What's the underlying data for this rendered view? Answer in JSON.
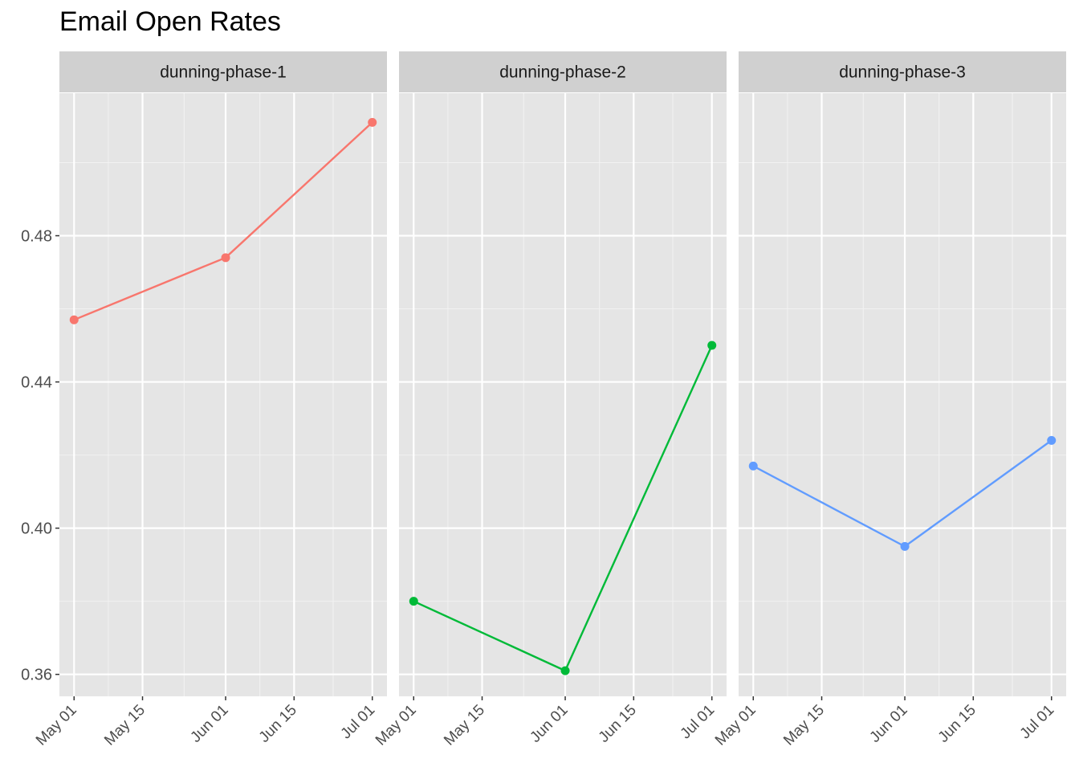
{
  "chart_data": {
    "type": "line",
    "title": "Email Open Rates",
    "xlabel": "",
    "ylabel": "",
    "x": [
      "2023-05-01",
      "2023-06-01",
      "2023-07-01"
    ],
    "xlim": [
      "2023-04-28",
      "2023-07-04"
    ],
    "ylim": [
      0.354,
      0.519
    ],
    "x_ticks": [
      {
        "label": "May 01",
        "date": "2023-05-01"
      },
      {
        "label": "May 15",
        "date": "2023-05-15"
      },
      {
        "label": "Jun 01",
        "date": "2023-06-01"
      },
      {
        "label": "Jun 15",
        "date": "2023-06-15"
      },
      {
        "label": "Jul 01",
        "date": "2023-07-01"
      }
    ],
    "y_ticks": [
      {
        "label": "0.36",
        "value": 0.36
      },
      {
        "label": "0.40",
        "value": 0.4
      },
      {
        "label": "0.44",
        "value": 0.44
      },
      {
        "label": "0.48",
        "value": 0.48
      }
    ],
    "grid": true,
    "legend": "none",
    "panel_background": "#e5e5e5",
    "strip_background": "#d0d0d0",
    "series": [
      {
        "facet": "dunning-phase-1",
        "color": "#f8766d",
        "values": [
          0.457,
          0.474,
          0.511
        ]
      },
      {
        "facet": "dunning-phase-2",
        "color": "#00ba38",
        "values": [
          0.38,
          0.361,
          0.45
        ]
      },
      {
        "facet": "dunning-phase-3",
        "color": "#619cff",
        "values": [
          0.417,
          0.395,
          0.424
        ]
      }
    ]
  }
}
